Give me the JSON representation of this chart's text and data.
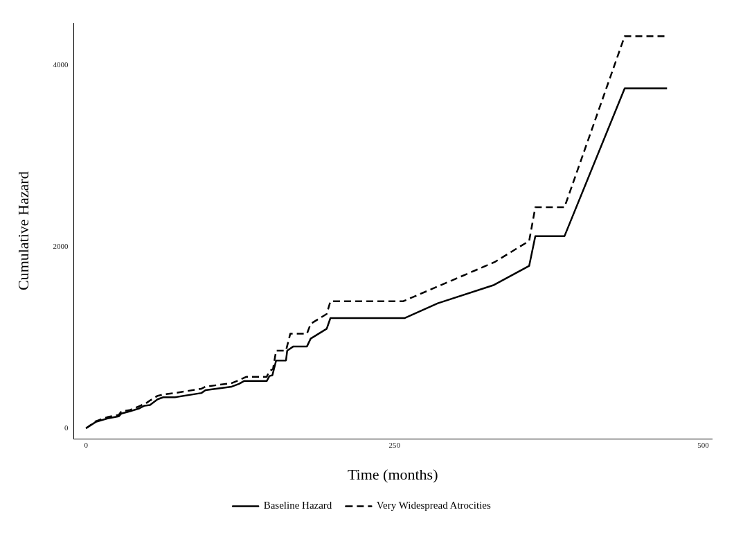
{
  "chart_data": {
    "type": "line",
    "xlabel": "Time (months)",
    "ylabel": "Cumulative Hazard",
    "xlim": [
      -10,
      507
    ],
    "ylim": [
      -117,
      4466
    ],
    "xticks": [
      0,
      250,
      500
    ],
    "yticks": [
      0,
      2000,
      4000
    ],
    "grid": false,
    "legend": "bottom",
    "marker": "none",
    "series": [
      {
        "name": "Baseline Hazard",
        "color": "#000000",
        "line_style": "solid",
        "x": [
          0,
          7.9,
          17.5,
          26.5,
          28.7,
          35.5,
          42.8,
          47.3,
          51.8,
          57.9,
          62.5,
          72,
          93.5,
          96.8,
          118,
          124,
          128,
          146.4,
          148.6,
          151,
          154,
          162,
          163,
          168,
          179,
          182,
          195,
          198,
          258,
          285,
          330.5,
          359,
          364,
          387.6,
          436.4,
          470.7
        ],
        "values": [
          0,
          70,
          109,
          132,
          163,
          187,
          218,
          249,
          257,
          319,
          342,
          342,
          389,
          420,
          459,
          490,
          521,
          521,
          576,
          584,
          747,
          747,
          856,
          902,
          902,
          988,
          1097,
          1214,
          1214,
          1377,
          1579,
          1789,
          2116,
          2116,
          3745,
          3745
        ]
      },
      {
        "name": "Very Widespread Atrocities",
        "color": "#000000",
        "line_style": "dashed",
        "x": [
          0,
          7.9,
          17.5,
          26.5,
          28.7,
          35.5,
          42.8,
          49,
          52.4,
          58,
          62.5,
          72,
          93.5,
          96.8,
          118,
          125,
          130,
          146.4,
          148.6,
          151.5,
          154,
          162,
          165.5,
          179,
          182,
          195,
          198,
          257,
          331,
          359,
          364,
          387.6,
          436.4,
          468.8
        ],
        "values": [
          0,
          78,
          124,
          148,
          187,
          202,
          241,
          280,
          311,
          358,
          373,
          389,
          436,
          459,
          498,
          537,
          568,
          568,
          630,
          654,
          856,
          856,
          1043,
          1043,
          1151,
          1260,
          1400,
          1400,
          1831,
          2064,
          2435,
          2435,
          4320,
          4320
        ]
      }
    ]
  }
}
